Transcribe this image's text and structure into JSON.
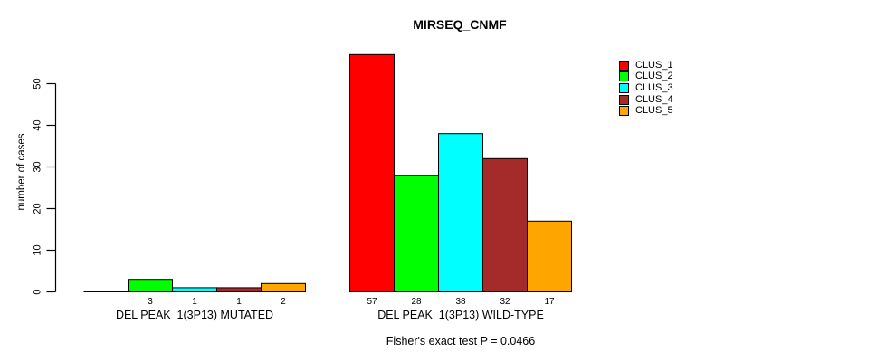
{
  "chart_data": {
    "type": "bar",
    "title": "MIRSEQ_CNMF",
    "ylabel": "number of cases",
    "xlabel": "",
    "yticks": [
      0,
      10,
      20,
      30,
      40,
      50
    ],
    "ylim": [
      0,
      57
    ],
    "grid": false,
    "legend_position": "right",
    "groups": [
      {
        "label": "DEL PEAK  1(3P13) MUTATED",
        "values": [
          0,
          3,
          1,
          1,
          2
        ]
      },
      {
        "label": "DEL PEAK  1(3P13) WILD-TYPE",
        "values": [
          57,
          28,
          38,
          32,
          17
        ]
      }
    ],
    "series": [
      {
        "name": "CLUS_1",
        "color": "#FF0000"
      },
      {
        "name": "CLUS_2",
        "color": "#00FF00"
      },
      {
        "name": "CLUS_3",
        "color": "#00FFFF"
      },
      {
        "name": "CLUS_4",
        "color": "#A52A2A"
      },
      {
        "name": "CLUS_5",
        "color": "#FFA500"
      }
    ],
    "bar_value_labels": {
      "mutated": [
        "3",
        "1",
        "1",
        "2"
      ],
      "wild_type": [
        "57",
        "28",
        "38",
        "32",
        "17"
      ]
    },
    "annotation": "Fisher's exact test P = 0.0466",
    "colors": {
      "axis": "#000000",
      "text": "#000000",
      "background": "#ffffff"
    }
  }
}
